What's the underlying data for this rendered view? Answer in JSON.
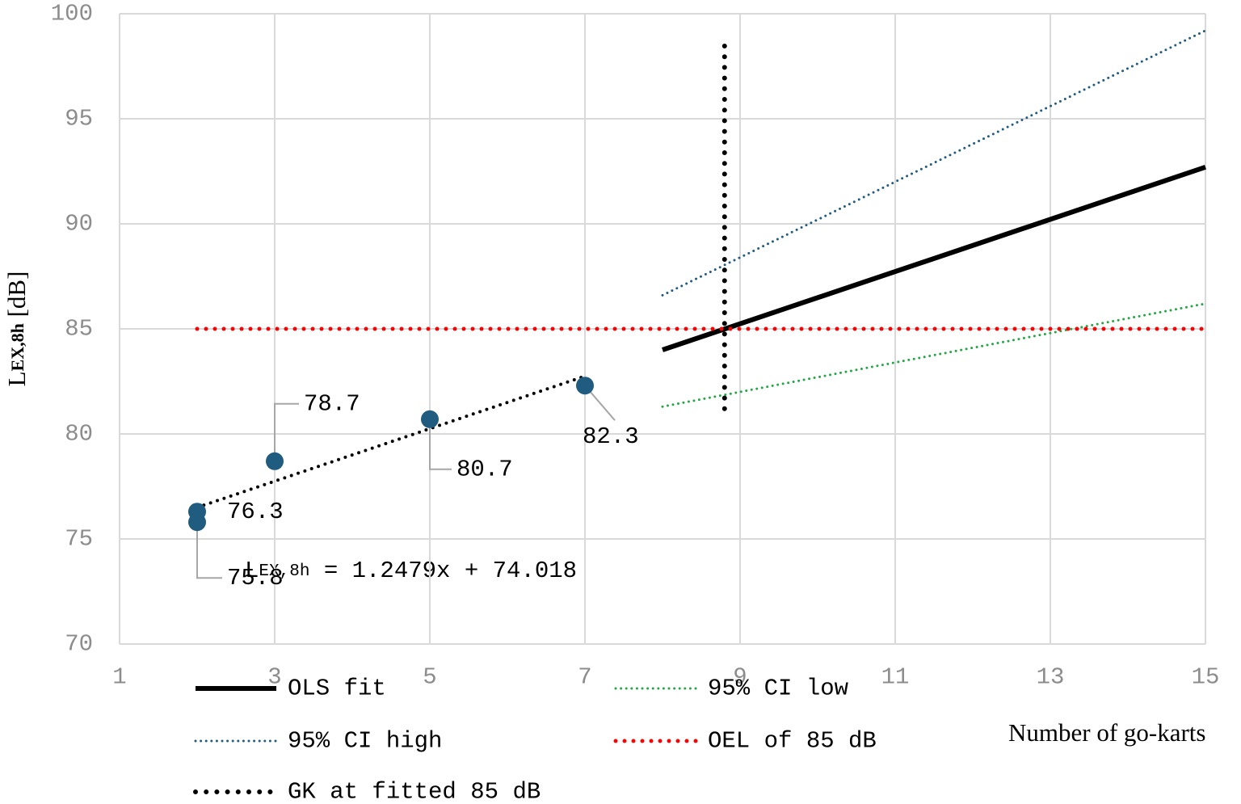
{
  "chart_data": {
    "type": "scatter",
    "xlabel": "Number of go-karts",
    "ylabel": [
      "L",
      "EX,8h",
      " [dB]"
    ],
    "equation": [
      "L",
      "EX,8h",
      " = 1.2479x + 74.018"
    ],
    "xlim": [
      1,
      15
    ],
    "xticks": [
      1,
      3,
      5,
      7,
      9,
      11,
      13,
      15
    ],
    "ylim": [
      70,
      100
    ],
    "yticks": [
      70,
      75,
      80,
      85,
      90,
      95,
      100
    ],
    "grid": true,
    "series": [
      {
        "name": "OLS fit",
        "color": "#000000",
        "style": "solid",
        "x": [
          8,
          15
        ],
        "values": [
          84.0,
          92.7
        ]
      },
      {
        "name": "95% CI low",
        "color": "#22a843",
        "style": "dotted",
        "x": [
          8,
          15
        ],
        "values": [
          81.3,
          86.2
        ]
      },
      {
        "name": "95% CI high",
        "color": "#1f5c80",
        "style": "dotted",
        "x": [
          8,
          15
        ],
        "values": [
          86.6,
          99.2
        ]
      },
      {
        "name": "OEL of 85 dB",
        "color": "#ff0000",
        "style": "dotted",
        "x": [
          2,
          15
        ],
        "values": [
          85,
          85
        ]
      },
      {
        "name": "GK at fitted 85 dB",
        "color": "#000000",
        "style": "dotted",
        "x": [
          8.8,
          8.8
        ],
        "values": [
          81.2,
          98.8
        ]
      },
      {
        "color": "#000000",
        "style": "dotted",
        "x": [
          2,
          7
        ],
        "values": [
          76.5,
          82.75
        ]
      },
      {
        "color": "#1f5c80",
        "style": "marker",
        "x": [
          2,
          2,
          3,
          5,
          7
        ],
        "values": [
          76.3,
          75.8,
          78.7,
          80.7,
          82.3
        ]
      }
    ]
  }
}
